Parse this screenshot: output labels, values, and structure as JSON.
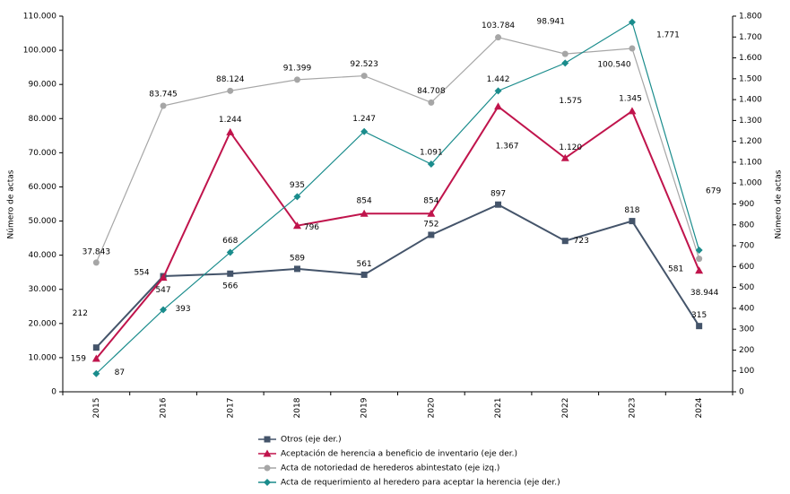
{
  "chart_data": {
    "type": "line",
    "categories": [
      "2015",
      "2016",
      "2017",
      "2018",
      "2019",
      "2020",
      "2021",
      "2022",
      "2023",
      "2024"
    ],
    "ylabel": "Número de actas",
    "y2label": "Número de actas",
    "ylim": [
      0,
      110000
    ],
    "yticks": [
      0,
      {
        "value": 10000,
        "label": "10.000"
      },
      {
        "value": 20000,
        "label": "20.000"
      },
      {
        "value": 30000,
        "label": "30.000"
      },
      {
        "value": 40000,
        "label": "40.000"
      },
      {
        "value": 50000,
        "label": "50.000"
      },
      {
        "value": 60000,
        "label": "60.000"
      },
      {
        "value": 70000,
        "label": "70.000"
      },
      {
        "value": 80000,
        "label": "80.000"
      },
      {
        "value": 90000,
        "label": "90.000"
      },
      {
        "value": 100000,
        "label": "100.000"
      },
      {
        "value": 110000,
        "label": "110.000"
      }
    ],
    "y2lim": [
      0,
      1800
    ],
    "y2ticks": [
      0,
      100,
      200,
      300,
      400,
      500,
      600,
      700,
      800,
      900,
      {
        "value": 1000,
        "label": "1.000"
      },
      {
        "value": 1100,
        "label": "1.100"
      },
      {
        "value": 1200,
        "label": "1.200"
      },
      {
        "value": 1300,
        "label": "1.300"
      },
      {
        "value": 1400,
        "label": "1.400"
      },
      {
        "value": 1500,
        "label": "1.500"
      },
      {
        "value": 1600,
        "label": "1.600"
      },
      {
        "value": 1700,
        "label": "1.700"
      },
      {
        "value": 1800,
        "label": "1.800"
      }
    ],
    "series": [
      {
        "name": "Otros (eje der.)",
        "color": "#44546a",
        "marker": "square",
        "axis": "y2",
        "values": [
          212,
          554,
          566,
          589,
          561,
          752,
          897,
          723,
          818,
          315
        ],
        "value_labels": [
          "212",
          "554",
          "566",
          "589",
          "561",
          "752",
          "897",
          "723",
          "818",
          "315"
        ]
      },
      {
        "name": "Aceptación de herencia a beneficio de inventario (eje der.)",
        "color": "#c0144c",
        "marker": "triangle",
        "axis": "y2",
        "values": [
          159,
          547,
          1244,
          796,
          854,
          854,
          1367,
          1120,
          1345,
          581
        ],
        "value_labels": [
          "159",
          "547",
          "1.244",
          "796",
          "854",
          "854",
          "1.367",
          "1.120",
          "1.345",
          "581"
        ]
      },
      {
        "name": "Acta de notoriedad de herederos abintestato (eje izq.)",
        "color": "#a6a6a6",
        "marker": "circle",
        "values": [
          37843,
          83745,
          88124,
          91399,
          92523,
          84708,
          103784,
          98941,
          100540,
          38944
        ],
        "value_labels": [
          "37.843",
          "83.745",
          "88.124",
          "91.399",
          "92.523",
          "84.708",
          "103.784",
          "98.941",
          "100.540",
          "38.944"
        ]
      },
      {
        "name": "Acta de requerimiento al heredero para aceptar la herencia (eje der.)",
        "color": "#1a8c8c",
        "marker": "diamond",
        "axis": "y2",
        "values": [
          87,
          393,
          668,
          935,
          1247,
          1091,
          1442,
          1575,
          1771,
          679
        ],
        "value_labels": [
          "87",
          "393",
          "668",
          "935",
          "1.247",
          "1.091",
          "1.442",
          "1.575",
          "1.771",
          "679"
        ]
      }
    ]
  }
}
